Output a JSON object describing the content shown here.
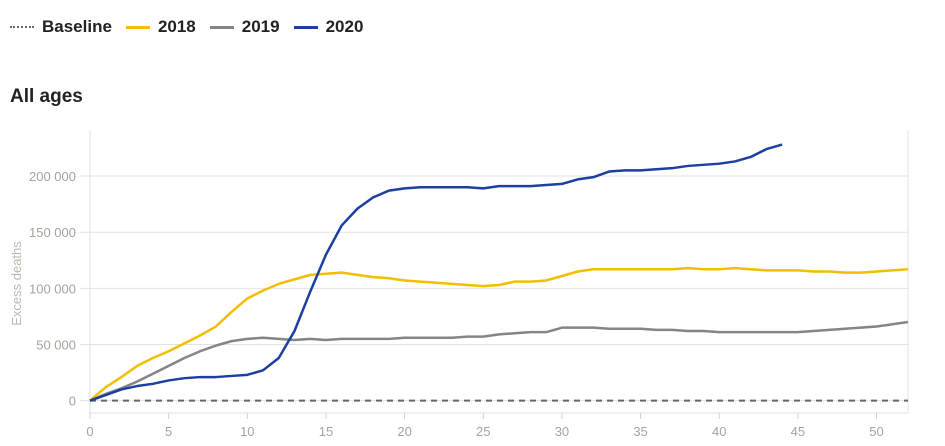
{
  "legend": [
    {
      "label": "Baseline",
      "color": "#666666",
      "style": "dotted"
    },
    {
      "label": "2018",
      "color": "#f2be00"
    },
    {
      "label": "2019",
      "color": "#858585"
    },
    {
      "label": "2020",
      "color": "#1c3fa0"
    }
  ],
  "title": "All ages",
  "chart_data": {
    "type": "line",
    "title": "All ages",
    "xlabel": "",
    "ylabel": "Excess deaths",
    "xlim": [
      0,
      52
    ],
    "ylim": [
      -11000,
      241000
    ],
    "xticks": [
      0,
      5,
      10,
      15,
      20,
      25,
      30,
      35,
      40,
      45,
      50
    ],
    "yticks": [
      0,
      50000,
      100000,
      150000,
      200000
    ],
    "ytick_labels": [
      "0",
      "50 000",
      "100 000",
      "150 000",
      "200 000"
    ],
    "grid": true,
    "legend_position": "top-left",
    "series": [
      {
        "name": "Baseline",
        "color": "#666666",
        "dashed": true,
        "x_start": 0,
        "values": [
          0,
          0
        ]
      },
      {
        "name": "2018",
        "color": "#f2be00",
        "x_start": 0,
        "values": [
          0,
          12000,
          21000,
          31000,
          38000,
          44000,
          51000,
          58000,
          66000,
          79000,
          91000,
          98000,
          104000,
          108000,
          112000,
          113000,
          114000,
          112000,
          110000,
          109000,
          107000,
          106000,
          105000,
          104000,
          103000,
          102000,
          103000,
          106000,
          106000,
          107000,
          111000,
          115000,
          117000,
          117000,
          117000,
          117000,
          117000,
          117000,
          118000,
          117000,
          117000,
          118000,
          117000,
          116000,
          116000,
          116000,
          115000,
          115000,
          114000,
          114000,
          115000,
          116000,
          117000
        ]
      },
      {
        "name": "2019",
        "color": "#858585",
        "x_start": 0,
        "values": [
          0,
          6000,
          11000,
          17000,
          24000,
          31000,
          38000,
          44000,
          49000,
          53000,
          55000,
          56000,
          55000,
          54000,
          55000,
          54000,
          55000,
          55000,
          55000,
          55000,
          56000,
          56000,
          56000,
          56000,
          57000,
          57000,
          59000,
          60000,
          61000,
          61000,
          65000,
          65000,
          65000,
          64000,
          64000,
          64000,
          63000,
          63000,
          62000,
          62000,
          61000,
          61000,
          61000,
          61000,
          61000,
          61000,
          62000,
          63000,
          64000,
          65000,
          66000,
          68000,
          70000
        ]
      },
      {
        "name": "2020",
        "color": "#1c3fa0",
        "x_start": 0,
        "values": [
          0,
          5000,
          10000,
          13000,
          15000,
          18000,
          20000,
          21000,
          21000,
          22000,
          23000,
          27000,
          38000,
          62000,
          97000,
          130000,
          156000,
          171000,
          181000,
          187000,
          189000,
          190000,
          190000,
          190000,
          190000,
          189000,
          191000,
          191000,
          191000,
          192000,
          193000,
          197000,
          199000,
          204000,
          205000,
          205000,
          206000,
          207000,
          209000,
          210000,
          211000,
          213000,
          217000,
          224000,
          228000
        ]
      }
    ]
  }
}
